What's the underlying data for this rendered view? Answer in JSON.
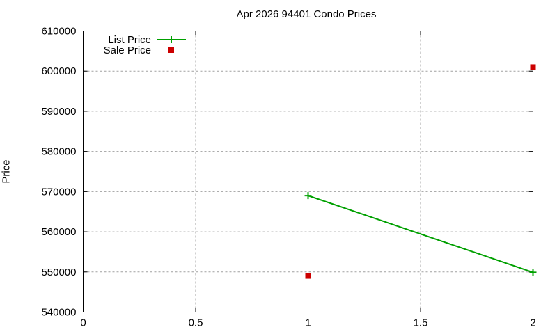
{
  "chart_data": {
    "type": "line",
    "title": "Apr 2026 94401 Condo Prices",
    "xlabel": "",
    "ylabel": "Price",
    "xlim": [
      0,
      2
    ],
    "ylim": [
      540000,
      610000
    ],
    "x_ticks": [
      "0",
      "0.5",
      "1",
      "1.5",
      "2"
    ],
    "y_ticks": [
      "540000",
      "550000",
      "560000",
      "570000",
      "580000",
      "590000",
      "600000",
      "610000"
    ],
    "grid": true,
    "legend_position": "top-left",
    "series": [
      {
        "name": "List Price",
        "style": "line+cross",
        "color": "#00a000",
        "x": [
          1,
          2
        ],
        "values": [
          569000,
          549900
        ]
      },
      {
        "name": "Sale Price",
        "style": "square-markers",
        "color": "#cc0000",
        "x": [
          1,
          2
        ],
        "values": [
          549000,
          601000
        ]
      }
    ]
  }
}
